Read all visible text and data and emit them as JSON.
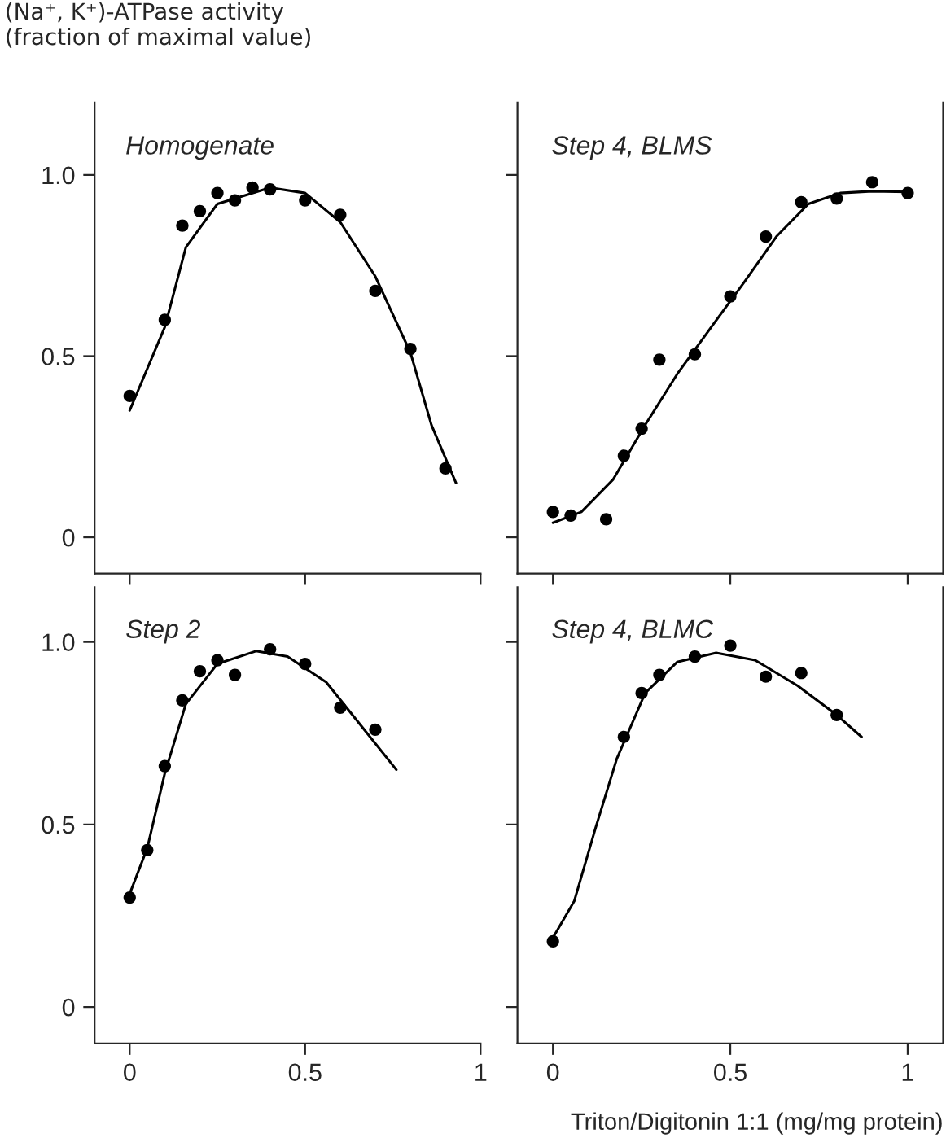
{
  "chart_data": [
    {
      "type": "scatter",
      "title": "Homogenate",
      "ylabel": "(Na⁺, K⁺)-ATPase activity\n(fraction of maximal value)",
      "xlim": [
        -0.1,
        1.0
      ],
      "xticks": [
        0,
        0.5,
        1
      ],
      "ylim": [
        -0.1,
        1.2
      ],
      "yticks": [
        0,
        0.5,
        {
          "value": 1.0,
          "label": "1.0"
        }
      ],
      "tick_labels": "y",
      "series": [
        {
          "marker": "circle",
          "color": "#000000",
          "x": [
            0,
            0.1,
            0.15,
            0.2,
            0.25,
            0.3,
            0.35,
            0.4,
            0.5,
            0.6,
            0.7,
            0.8,
            0.9
          ],
          "values": [
            0.39,
            0.6,
            0.86,
            0.9,
            0.95,
            0.93,
            0.965,
            0.96,
            0.93,
            0.89,
            0.68,
            0.52,
            0.19
          ]
        },
        {
          "type": "line",
          "color": "#000000",
          "x": [
            0,
            0.1,
            0.16,
            0.25,
            0.4,
            0.5,
            0.6,
            0.7,
            0.8,
            0.86,
            0.93
          ],
          "values": [
            0.35,
            0.58,
            0.8,
            0.92,
            0.965,
            0.95,
            0.87,
            0.72,
            0.51,
            0.31,
            0.15
          ]
        }
      ]
    },
    {
      "type": "scatter",
      "title": "Step 4, BLMS",
      "xlim": [
        -0.1,
        1.1
      ],
      "xticks": [
        0,
        0.5,
        1
      ],
      "ylim": [
        -0.1,
        1.2
      ],
      "yticks": [
        0,
        0.5,
        1
      ],
      "tick_labels": false,
      "series": [
        {
          "marker": "circle",
          "color": "#000000",
          "x": [
            0,
            0.05,
            0.15,
            0.2,
            0.25,
            0.3,
            0.4,
            0.5,
            0.6,
            0.7,
            0.8,
            0.9,
            1.0
          ],
          "values": [
            0.07,
            0.06,
            0.05,
            0.225,
            0.3,
            0.49,
            0.505,
            0.665,
            0.83,
            0.925,
            0.935,
            0.98,
            0.95
          ]
        },
        {
          "type": "line",
          "color": "#000000",
          "x": [
            0,
            0.08,
            0.17,
            0.26,
            0.35,
            0.45,
            0.54,
            0.63,
            0.72,
            0.81,
            0.9,
            1.0
          ],
          "values": [
            0.04,
            0.07,
            0.16,
            0.31,
            0.45,
            0.585,
            0.705,
            0.83,
            0.92,
            0.95,
            0.955,
            0.953
          ]
        }
      ]
    },
    {
      "type": "scatter",
      "title": "Step 2",
      "xlim": [
        -0.1,
        1.0
      ],
      "xticks": [
        0,
        0.5,
        1
      ],
      "ylim": [
        -0.1,
        1.15
      ],
      "yticks": [
        0,
        0.5,
        {
          "value": 1.0,
          "label": "1.0"
        }
      ],
      "series": [
        {
          "marker": "circle",
          "color": "#000000",
          "x": [
            0,
            0.05,
            0.1,
            0.15,
            0.2,
            0.25,
            0.3,
            0.4,
            0.5,
            0.6,
            0.7
          ],
          "values": [
            0.3,
            0.43,
            0.66,
            0.84,
            0.92,
            0.95,
            0.91,
            0.98,
            0.94,
            0.82,
            0.76
          ]
        },
        {
          "type": "line",
          "color": "#000000",
          "x": [
            0,
            0.05,
            0.1,
            0.16,
            0.25,
            0.36,
            0.45,
            0.56,
            0.66,
            0.76
          ],
          "values": [
            0.31,
            0.435,
            0.64,
            0.83,
            0.94,
            0.975,
            0.96,
            0.89,
            0.77,
            0.65
          ]
        }
      ]
    },
    {
      "type": "scatter",
      "title": "Step 4, BLMC",
      "xlabel": "Triton/Digitonin 1:1 (mg/mg protein)",
      "xlim": [
        -0.1,
        1.1
      ],
      "xticks": [
        0,
        0.5,
        1
      ],
      "ylim": [
        -0.1,
        1.15
      ],
      "yticks": [
        0,
        0.5,
        1
      ],
      "tick_labels": "x",
      "series": [
        {
          "marker": "circle",
          "color": "#000000",
          "x": [
            0,
            0.2,
            0.25,
            0.3,
            0.4,
            0.5,
            0.6,
            0.7,
            0.8
          ],
          "values": [
            0.18,
            0.74,
            0.86,
            0.91,
            0.96,
            0.99,
            0.905,
            0.915,
            0.8
          ]
        },
        {
          "type": "line",
          "color": "#000000",
          "x": [
            0,
            0.06,
            0.12,
            0.18,
            0.26,
            0.35,
            0.46,
            0.57,
            0.69,
            0.8,
            0.87
          ],
          "values": [
            0.19,
            0.29,
            0.49,
            0.68,
            0.86,
            0.945,
            0.97,
            0.95,
            0.88,
            0.8,
            0.74
          ]
        }
      ]
    }
  ]
}
